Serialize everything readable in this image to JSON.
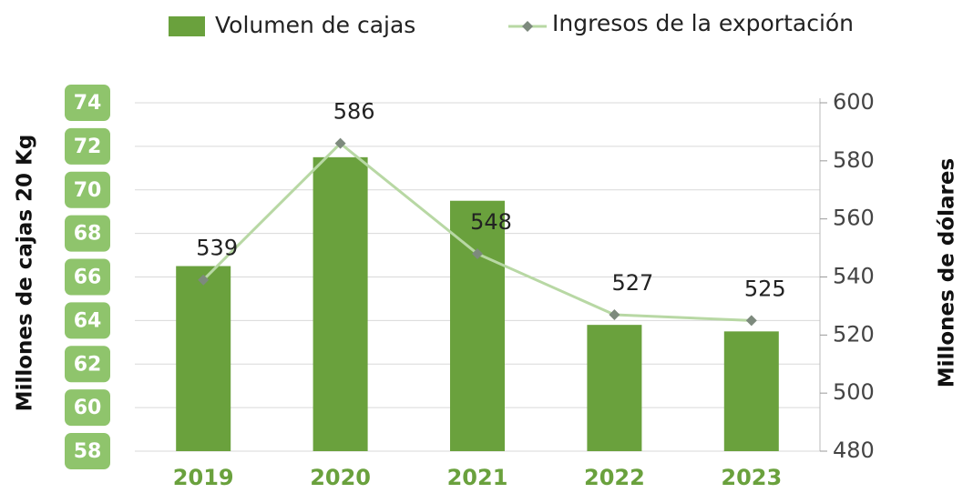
{
  "chart_data": {
    "type": "bar-line",
    "categories": [
      "2019",
      "2020",
      "2021",
      "2022",
      "2023"
    ],
    "series": [
      {
        "name": "Volumen de cajas",
        "type": "bar",
        "axis": "y",
        "color": "#6aa13d",
        "values": [
          66.5,
          71.5,
          69.5,
          63.8,
          63.5
        ]
      },
      {
        "name": "Ingresos de la exportación",
        "type": "line",
        "axis": "y2",
        "color": "#b8d8a4",
        "marker_color": "#7d8a7d",
        "values": [
          539,
          586,
          548,
          527,
          525
        ]
      }
    ],
    "ylabel": "Millones de cajas 20 Kg",
    "y2label": "Millones de dólares",
    "ylim": [
      58,
      74
    ],
    "yticks": [
      58,
      60,
      62,
      64,
      66,
      68,
      70,
      72,
      74
    ],
    "y2lim": [
      480,
      600
    ],
    "y2ticks": [
      480,
      500,
      520,
      540,
      560,
      580,
      600
    ],
    "grid": true
  }
}
